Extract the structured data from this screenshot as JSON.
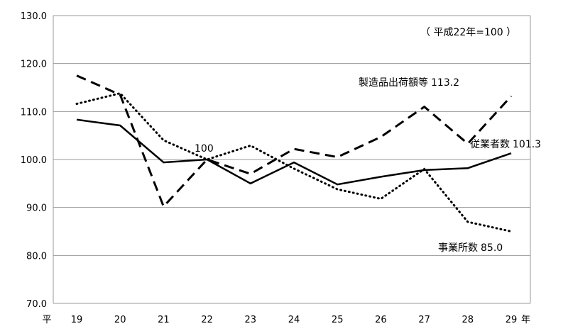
{
  "chart_data": {
    "type": "line",
    "categories": [
      "19",
      "20",
      "21",
      "22",
      "23",
      "24",
      "25",
      "26",
      "27",
      "28",
      "29"
    ],
    "x_prefix": "平",
    "x_suffix": "年",
    "ylim": [
      70,
      130
    ],
    "yticks": [
      "70.0",
      "80.0",
      "90.0",
      "100.0",
      "110.0",
      "120.0",
      "130.0"
    ],
    "grid": true,
    "note": "（ 平成22年=100 ）",
    "annotation": "100",
    "series": [
      {
        "name": "製造品出荷額等",
        "end_label": "113.2",
        "style": "dashed",
        "values": [
          117.5,
          113.5,
          90.2,
          100.0,
          97.0,
          102.2,
          100.5,
          104.7,
          111.0,
          103.3,
          113.2
        ]
      },
      {
        "name": "従業者数",
        "end_label": "101.3",
        "style": "solid",
        "values": [
          108.3,
          107.1,
          99.4,
          100.0,
          95.0,
          99.4,
          94.8,
          96.4,
          97.8,
          98.2,
          101.3
        ]
      },
      {
        "name": "事業所数",
        "end_label": "85.0",
        "style": "dotted",
        "values": [
          111.6,
          113.8,
          104.0,
          100.0,
          102.9,
          98.1,
          93.8,
          91.8,
          98.0,
          87.0,
          85.0
        ]
      }
    ]
  }
}
